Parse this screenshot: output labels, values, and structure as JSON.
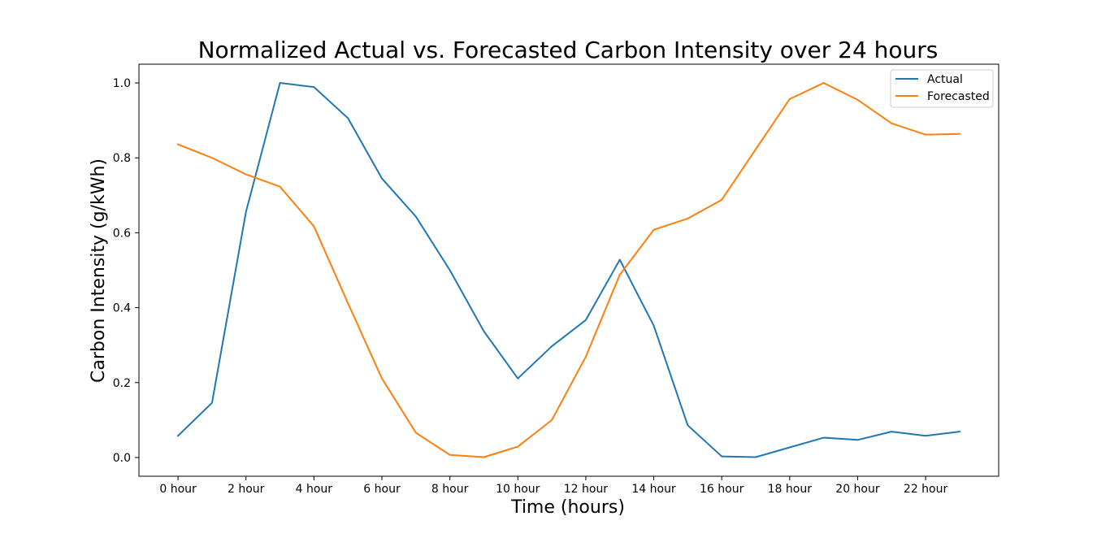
{
  "chart_data": {
    "type": "line",
    "title": "Normalized Actual vs. Forecasted Carbon Intensity over 24 hours",
    "xlabel": "Time (hours)",
    "ylabel": "Carbon Intensity (g/kWh)",
    "x": [
      0,
      1,
      2,
      3,
      4,
      5,
      6,
      7,
      8,
      9,
      10,
      11,
      12,
      13,
      14,
      15,
      16,
      17,
      18,
      19,
      20,
      21,
      22,
      23
    ],
    "xlim": [
      -1.15,
      24.15
    ],
    "ylim": [
      -0.05,
      1.05
    ],
    "x_ticks": [
      {
        "value": 0,
        "label": "0 hour"
      },
      {
        "value": 2,
        "label": "2 hour"
      },
      {
        "value": 4,
        "label": "4 hour"
      },
      {
        "value": 6,
        "label": "6 hour"
      },
      {
        "value": 8,
        "label": "8 hour"
      },
      {
        "value": 10,
        "label": "10 hour"
      },
      {
        "value": 12,
        "label": "12 hour"
      },
      {
        "value": 14,
        "label": "14 hour"
      },
      {
        "value": 16,
        "label": "16 hour"
      },
      {
        "value": 18,
        "label": "18 hour"
      },
      {
        "value": 20,
        "label": "20 hour"
      },
      {
        "value": 22,
        "label": "22 hour"
      }
    ],
    "y_ticks": [
      {
        "value": 0.0,
        "label": "0.0"
      },
      {
        "value": 0.2,
        "label": "0.2"
      },
      {
        "value": 0.4,
        "label": "0.4"
      },
      {
        "value": 0.6,
        "label": "0.6"
      },
      {
        "value": 0.8,
        "label": "0.8"
      },
      {
        "value": 1.0,
        "label": "1.0"
      }
    ],
    "grid": false,
    "legend_position": "top-right",
    "series": [
      {
        "name": "Actual",
        "color": "#1f77b4",
        "values": [
          0.058,
          0.146,
          0.656,
          1.0,
          0.989,
          0.906,
          0.745,
          0.643,
          0.5,
          0.337,
          0.211,
          0.297,
          0.367,
          0.528,
          0.352,
          0.086,
          0.003,
          0.001,
          0.027,
          0.053,
          0.047,
          0.069,
          0.058,
          0.069
        ]
      },
      {
        "name": "Forecasted",
        "color": "#ff7f0e",
        "values": [
          0.836,
          0.8,
          0.756,
          0.723,
          0.617,
          0.412,
          0.211,
          0.066,
          0.007,
          0.001,
          0.029,
          0.1,
          0.269,
          0.488,
          0.608,
          0.638,
          0.688,
          0.823,
          0.957,
          1.0,
          0.955,
          0.892,
          0.862,
          0.864
        ]
      }
    ]
  }
}
